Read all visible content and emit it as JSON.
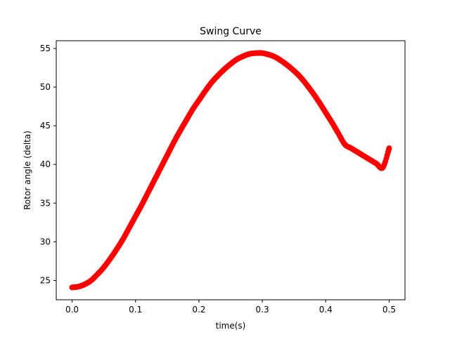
{
  "chart_data": {
    "type": "scatter",
    "title": "Swing Curve",
    "xlabel": "time(s)",
    "ylabel": "Rotor angle (delta)",
    "xlim": [
      -0.025,
      0.525
    ],
    "ylim": [
      22.5,
      56
    ],
    "xticks": [
      0.0,
      0.1,
      0.2,
      0.3,
      0.4,
      0.5
    ],
    "xtick_labels": [
      "0.0",
      "0.1",
      "0.2",
      "0.3",
      "0.4",
      "0.5"
    ],
    "yticks": [
      25,
      30,
      35,
      40,
      45,
      50,
      55
    ],
    "ytick_labels": [
      "25",
      "30",
      "35",
      "40",
      "45",
      "50",
      "55"
    ],
    "grid": false,
    "marker_color": "#ff0000",
    "series": [
      {
        "x": [
          0.0,
          0.01,
          0.02,
          0.03,
          0.04,
          0.05,
          0.06,
          0.07,
          0.08,
          0.09,
          0.1,
          0.11,
          0.12,
          0.13,
          0.14,
          0.15,
          0.16,
          0.17,
          0.18,
          0.19,
          0.2,
          0.21,
          0.22,
          0.23,
          0.24,
          0.25,
          0.26,
          0.27,
          0.28,
          0.29,
          0.3,
          0.31,
          0.32,
          0.33,
          0.34,
          0.35,
          0.36,
          0.37,
          0.38,
          0.39,
          0.4,
          0.41,
          0.42,
          0.43,
          0.44,
          0.45,
          0.46,
          0.47,
          0.48,
          0.49,
          0.5
        ],
        "y": [
          24.1,
          24.2,
          24.5,
          25.0,
          25.8,
          26.7,
          27.8,
          29.0,
          30.3,
          31.8,
          33.3,
          34.8,
          36.4,
          38.0,
          39.6,
          41.2,
          42.8,
          44.3,
          45.7,
          47.1,
          48.3,
          49.5,
          50.6,
          51.5,
          52.3,
          53.0,
          53.6,
          54.0,
          54.3,
          54.4,
          54.4,
          54.2,
          53.9,
          53.4,
          52.8,
          52.1,
          51.3,
          50.3,
          49.2,
          48.0,
          46.7,
          45.4,
          44.0,
          42.6,
          42.1,
          41.6,
          41.1,
          40.6,
          40.1,
          39.6,
          42.1
        ]
      }
    ]
  }
}
